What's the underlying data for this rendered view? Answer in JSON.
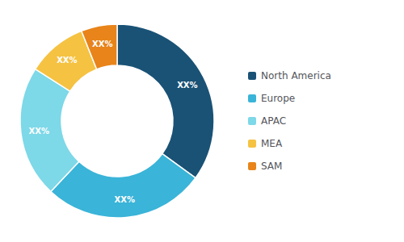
{
  "chart_data": {
    "type": "donut",
    "categories": [
      "North America",
      "Europe",
      "APAC",
      "MEA",
      "SAM"
    ],
    "values": [
      35,
      27,
      22,
      10,
      6
    ],
    "value_labels": [
      "XX%",
      "XX%",
      "XX%",
      "XX%",
      "XX%"
    ],
    "colors": [
      "#1a5276",
      "#3ab4d8",
      "#7dd8e8",
      "#f5c242",
      "#e8841a"
    ],
    "data_labels": true,
    "legend": "right"
  }
}
